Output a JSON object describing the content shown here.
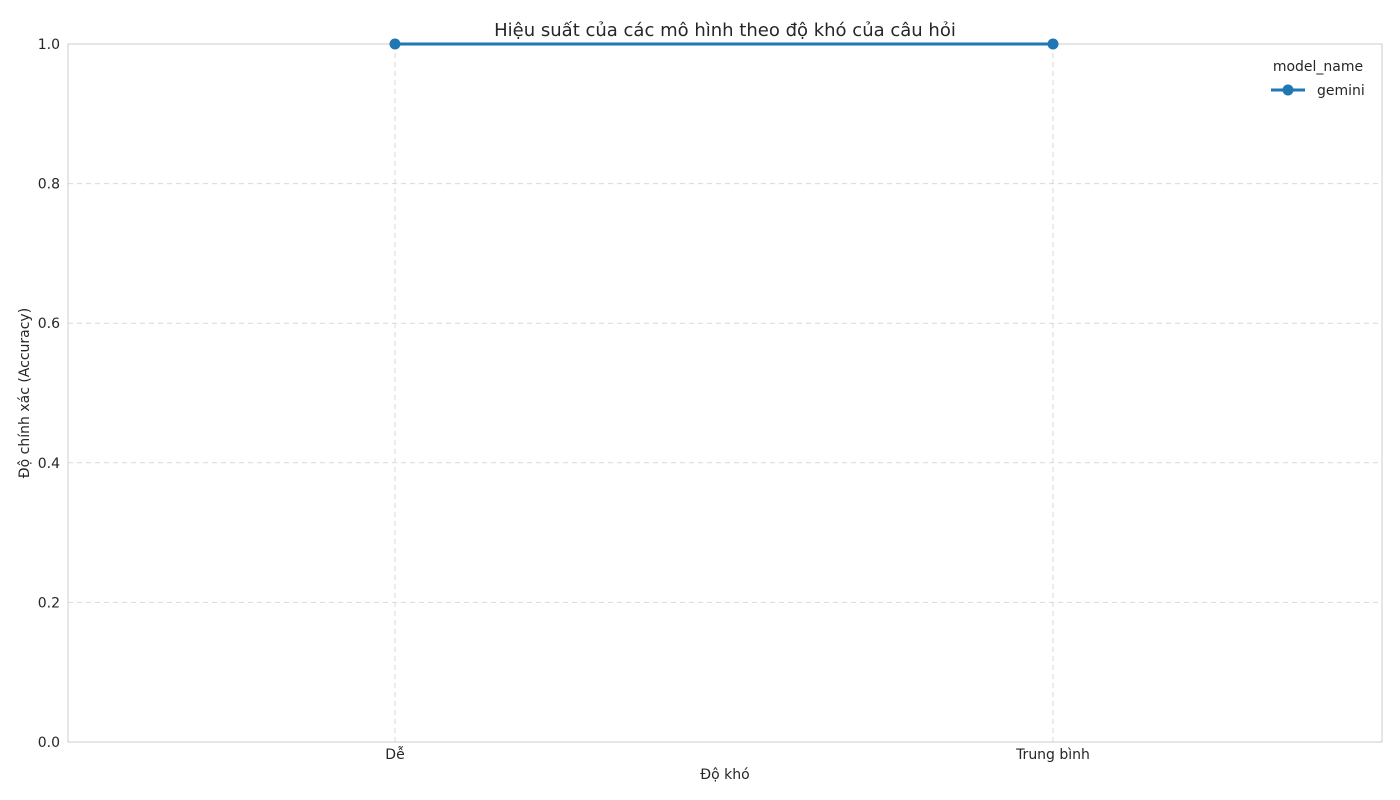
{
  "chart_data": {
    "type": "line",
    "title": "Hiệu suất của các mô hình theo độ khó của câu hỏi",
    "xlabel": "Độ khó",
    "ylabel": "Độ chính xác (Accuracy)",
    "categories": [
      "Dễ",
      "Trung bình"
    ],
    "ylim": [
      0,
      1.0
    ],
    "yticks": [
      "0.0",
      "0.2",
      "0.4",
      "0.6",
      "0.8",
      "1.0"
    ],
    "series": [
      {
        "name": "gemini",
        "values": [
          1.0,
          1.0
        ],
        "color": "#1f77b4"
      }
    ],
    "legend": {
      "title": "model_name",
      "placement": "top-right"
    },
    "grid": true
  }
}
